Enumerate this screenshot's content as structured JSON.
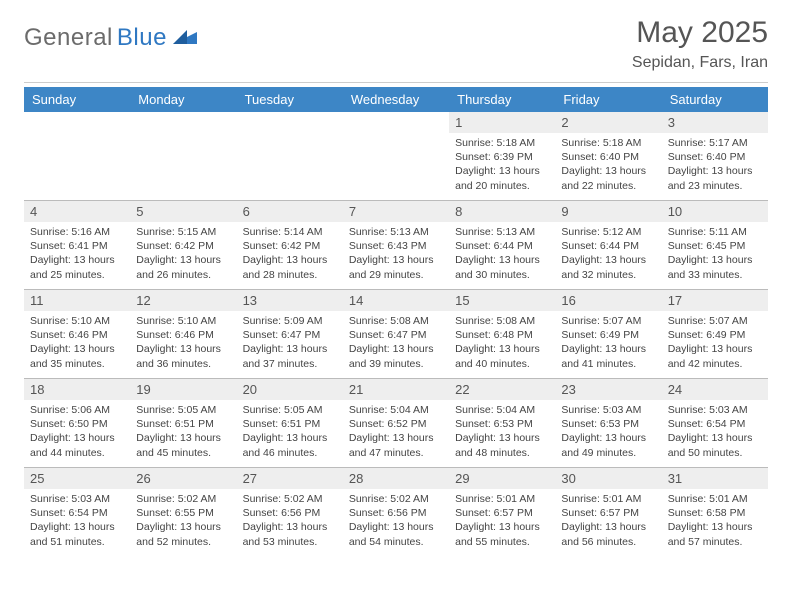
{
  "brand": {
    "g": "General",
    "b": "Blue"
  },
  "title": {
    "month": "May 2025",
    "location": "Sepidan, Fars, Iran"
  },
  "dow": [
    "Sunday",
    "Monday",
    "Tuesday",
    "Wednesday",
    "Thursday",
    "Friday",
    "Saturday"
  ],
  "colors": {
    "header_bg": "#3d86c6",
    "header_fg": "#ffffff",
    "daynum_bg": "#eeeeee",
    "rule": "#bbbbbb",
    "text": "#444444",
    "brand_gray": "#6b6b6b",
    "brand_blue": "#2f78c2"
  },
  "weeks": [
    [
      null,
      null,
      null,
      null,
      {
        "n": "1",
        "sr": "5:18 AM",
        "ss": "6:39 PM",
        "dl": "13 hours and 20 minutes."
      },
      {
        "n": "2",
        "sr": "5:18 AM",
        "ss": "6:40 PM",
        "dl": "13 hours and 22 minutes."
      },
      {
        "n": "3",
        "sr": "5:17 AM",
        "ss": "6:40 PM",
        "dl": "13 hours and 23 minutes."
      }
    ],
    [
      {
        "n": "4",
        "sr": "5:16 AM",
        "ss": "6:41 PM",
        "dl": "13 hours and 25 minutes."
      },
      {
        "n": "5",
        "sr": "5:15 AM",
        "ss": "6:42 PM",
        "dl": "13 hours and 26 minutes."
      },
      {
        "n": "6",
        "sr": "5:14 AM",
        "ss": "6:42 PM",
        "dl": "13 hours and 28 minutes."
      },
      {
        "n": "7",
        "sr": "5:13 AM",
        "ss": "6:43 PM",
        "dl": "13 hours and 29 minutes."
      },
      {
        "n": "8",
        "sr": "5:13 AM",
        "ss": "6:44 PM",
        "dl": "13 hours and 30 minutes."
      },
      {
        "n": "9",
        "sr": "5:12 AM",
        "ss": "6:44 PM",
        "dl": "13 hours and 32 minutes."
      },
      {
        "n": "10",
        "sr": "5:11 AM",
        "ss": "6:45 PM",
        "dl": "13 hours and 33 minutes."
      }
    ],
    [
      {
        "n": "11",
        "sr": "5:10 AM",
        "ss": "6:46 PM",
        "dl": "13 hours and 35 minutes."
      },
      {
        "n": "12",
        "sr": "5:10 AM",
        "ss": "6:46 PM",
        "dl": "13 hours and 36 minutes."
      },
      {
        "n": "13",
        "sr": "5:09 AM",
        "ss": "6:47 PM",
        "dl": "13 hours and 37 minutes."
      },
      {
        "n": "14",
        "sr": "5:08 AM",
        "ss": "6:47 PM",
        "dl": "13 hours and 39 minutes."
      },
      {
        "n": "15",
        "sr": "5:08 AM",
        "ss": "6:48 PM",
        "dl": "13 hours and 40 minutes."
      },
      {
        "n": "16",
        "sr": "5:07 AM",
        "ss": "6:49 PM",
        "dl": "13 hours and 41 minutes."
      },
      {
        "n": "17",
        "sr": "5:07 AM",
        "ss": "6:49 PM",
        "dl": "13 hours and 42 minutes."
      }
    ],
    [
      {
        "n": "18",
        "sr": "5:06 AM",
        "ss": "6:50 PM",
        "dl": "13 hours and 44 minutes."
      },
      {
        "n": "19",
        "sr": "5:05 AM",
        "ss": "6:51 PM",
        "dl": "13 hours and 45 minutes."
      },
      {
        "n": "20",
        "sr": "5:05 AM",
        "ss": "6:51 PM",
        "dl": "13 hours and 46 minutes."
      },
      {
        "n": "21",
        "sr": "5:04 AM",
        "ss": "6:52 PM",
        "dl": "13 hours and 47 minutes."
      },
      {
        "n": "22",
        "sr": "5:04 AM",
        "ss": "6:53 PM",
        "dl": "13 hours and 48 minutes."
      },
      {
        "n": "23",
        "sr": "5:03 AM",
        "ss": "6:53 PM",
        "dl": "13 hours and 49 minutes."
      },
      {
        "n": "24",
        "sr": "5:03 AM",
        "ss": "6:54 PM",
        "dl": "13 hours and 50 minutes."
      }
    ],
    [
      {
        "n": "25",
        "sr": "5:03 AM",
        "ss": "6:54 PM",
        "dl": "13 hours and 51 minutes."
      },
      {
        "n": "26",
        "sr": "5:02 AM",
        "ss": "6:55 PM",
        "dl": "13 hours and 52 minutes."
      },
      {
        "n": "27",
        "sr": "5:02 AM",
        "ss": "6:56 PM",
        "dl": "13 hours and 53 minutes."
      },
      {
        "n": "28",
        "sr": "5:02 AM",
        "ss": "6:56 PM",
        "dl": "13 hours and 54 minutes."
      },
      {
        "n": "29",
        "sr": "5:01 AM",
        "ss": "6:57 PM",
        "dl": "13 hours and 55 minutes."
      },
      {
        "n": "30",
        "sr": "5:01 AM",
        "ss": "6:57 PM",
        "dl": "13 hours and 56 minutes."
      },
      {
        "n": "31",
        "sr": "5:01 AM",
        "ss": "6:58 PM",
        "dl": "13 hours and 57 minutes."
      }
    ]
  ],
  "labels": {
    "sunrise": "Sunrise: ",
    "sunset": "Sunset: ",
    "daylight": "Daylight: "
  }
}
